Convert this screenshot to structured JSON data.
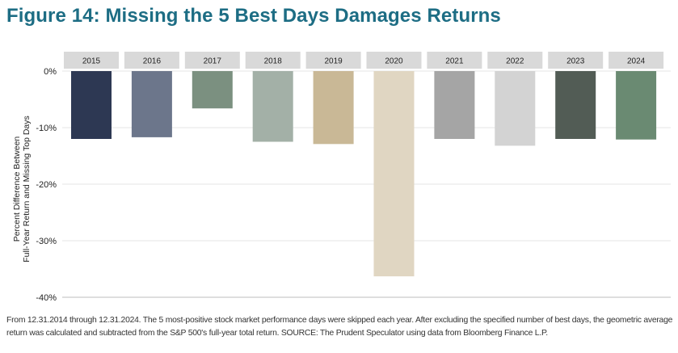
{
  "title": "Figure 14: Missing the 5 Best Days Damages Returns",
  "footnote": "From 12.31.2014 through 12.31.2024. The 5 most-positive stock market performance days were skipped each year. After excluding the specified number of best days, the geometric average return was calculated and subtracted from the S&P 500's full-year total return. SOURCE: The Prudent Speculator using data from Bloomberg Finance L.P.",
  "chart_data": {
    "type": "bar",
    "categories": [
      "2015",
      "2016",
      "2017",
      "2018",
      "2019",
      "2020",
      "2021",
      "2022",
      "2023",
      "2024"
    ],
    "values": [
      -12.0,
      -11.7,
      -6.6,
      -12.5,
      -12.9,
      -36.3,
      -12.0,
      -13.2,
      -12.0,
      -12.1
    ],
    "colors": [
      "#2d3853",
      "#6c768b",
      "#7b9080",
      "#a3b0a7",
      "#c9b896",
      "#e0d6c2",
      "#a5a5a5",
      "#d3d3d3",
      "#525c55",
      "#6a8a72"
    ],
    "ylabel_line1": "Percent Difference Between",
    "ylabel_line2": "Full-Year Return and Missing Top Days",
    "ylim": [
      -40,
      0
    ],
    "yticks": [
      0,
      -10,
      -20,
      -30,
      -40
    ],
    "ytick_labels": [
      "0%",
      "-10%",
      "-20%",
      "-30%",
      "-40%"
    ],
    "grid": true,
    "category_labels_position": "top"
  }
}
